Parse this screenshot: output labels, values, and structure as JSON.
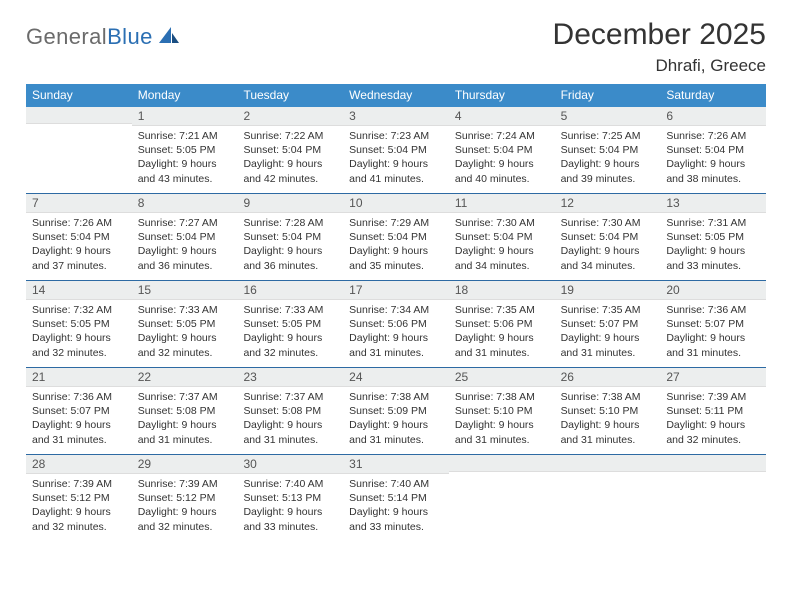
{
  "brand": {
    "general": "General",
    "blue": "Blue"
  },
  "title": "December 2025",
  "location": "Dhrafi, Greece",
  "colors": {
    "headerBar": "#3b8bc9",
    "weekDivider": "#2d6aa3",
    "dayNumBg": "#eceeee",
    "text": "#333333",
    "logoBlue": "#2b6fb3",
    "logoGray": "#6b6b6b"
  },
  "weekdays": [
    "Sunday",
    "Monday",
    "Tuesday",
    "Wednesday",
    "Thursday",
    "Friday",
    "Saturday"
  ],
  "weeks": [
    [
      {
        "n": "",
        "l1": "",
        "l2": "",
        "l3": "",
        "l4": ""
      },
      {
        "n": "1",
        "l1": "Sunrise: 7:21 AM",
        "l2": "Sunset: 5:05 PM",
        "l3": "Daylight: 9 hours",
        "l4": "and 43 minutes."
      },
      {
        "n": "2",
        "l1": "Sunrise: 7:22 AM",
        "l2": "Sunset: 5:04 PM",
        "l3": "Daylight: 9 hours",
        "l4": "and 42 minutes."
      },
      {
        "n": "3",
        "l1": "Sunrise: 7:23 AM",
        "l2": "Sunset: 5:04 PM",
        "l3": "Daylight: 9 hours",
        "l4": "and 41 minutes."
      },
      {
        "n": "4",
        "l1": "Sunrise: 7:24 AM",
        "l2": "Sunset: 5:04 PM",
        "l3": "Daylight: 9 hours",
        "l4": "and 40 minutes."
      },
      {
        "n": "5",
        "l1": "Sunrise: 7:25 AM",
        "l2": "Sunset: 5:04 PM",
        "l3": "Daylight: 9 hours",
        "l4": "and 39 minutes."
      },
      {
        "n": "6",
        "l1": "Sunrise: 7:26 AM",
        "l2": "Sunset: 5:04 PM",
        "l3": "Daylight: 9 hours",
        "l4": "and 38 minutes."
      }
    ],
    [
      {
        "n": "7",
        "l1": "Sunrise: 7:26 AM",
        "l2": "Sunset: 5:04 PM",
        "l3": "Daylight: 9 hours",
        "l4": "and 37 minutes."
      },
      {
        "n": "8",
        "l1": "Sunrise: 7:27 AM",
        "l2": "Sunset: 5:04 PM",
        "l3": "Daylight: 9 hours",
        "l4": "and 36 minutes."
      },
      {
        "n": "9",
        "l1": "Sunrise: 7:28 AM",
        "l2": "Sunset: 5:04 PM",
        "l3": "Daylight: 9 hours",
        "l4": "and 36 minutes."
      },
      {
        "n": "10",
        "l1": "Sunrise: 7:29 AM",
        "l2": "Sunset: 5:04 PM",
        "l3": "Daylight: 9 hours",
        "l4": "and 35 minutes."
      },
      {
        "n": "11",
        "l1": "Sunrise: 7:30 AM",
        "l2": "Sunset: 5:04 PM",
        "l3": "Daylight: 9 hours",
        "l4": "and 34 minutes."
      },
      {
        "n": "12",
        "l1": "Sunrise: 7:30 AM",
        "l2": "Sunset: 5:04 PM",
        "l3": "Daylight: 9 hours",
        "l4": "and 34 minutes."
      },
      {
        "n": "13",
        "l1": "Sunrise: 7:31 AM",
        "l2": "Sunset: 5:05 PM",
        "l3": "Daylight: 9 hours",
        "l4": "and 33 minutes."
      }
    ],
    [
      {
        "n": "14",
        "l1": "Sunrise: 7:32 AM",
        "l2": "Sunset: 5:05 PM",
        "l3": "Daylight: 9 hours",
        "l4": "and 32 minutes."
      },
      {
        "n": "15",
        "l1": "Sunrise: 7:33 AM",
        "l2": "Sunset: 5:05 PM",
        "l3": "Daylight: 9 hours",
        "l4": "and 32 minutes."
      },
      {
        "n": "16",
        "l1": "Sunrise: 7:33 AM",
        "l2": "Sunset: 5:05 PM",
        "l3": "Daylight: 9 hours",
        "l4": "and 32 minutes."
      },
      {
        "n": "17",
        "l1": "Sunrise: 7:34 AM",
        "l2": "Sunset: 5:06 PM",
        "l3": "Daylight: 9 hours",
        "l4": "and 31 minutes."
      },
      {
        "n": "18",
        "l1": "Sunrise: 7:35 AM",
        "l2": "Sunset: 5:06 PM",
        "l3": "Daylight: 9 hours",
        "l4": "and 31 minutes."
      },
      {
        "n": "19",
        "l1": "Sunrise: 7:35 AM",
        "l2": "Sunset: 5:07 PM",
        "l3": "Daylight: 9 hours",
        "l4": "and 31 minutes."
      },
      {
        "n": "20",
        "l1": "Sunrise: 7:36 AM",
        "l2": "Sunset: 5:07 PM",
        "l3": "Daylight: 9 hours",
        "l4": "and 31 minutes."
      }
    ],
    [
      {
        "n": "21",
        "l1": "Sunrise: 7:36 AM",
        "l2": "Sunset: 5:07 PM",
        "l3": "Daylight: 9 hours",
        "l4": "and 31 minutes."
      },
      {
        "n": "22",
        "l1": "Sunrise: 7:37 AM",
        "l2": "Sunset: 5:08 PM",
        "l3": "Daylight: 9 hours",
        "l4": "and 31 minutes."
      },
      {
        "n": "23",
        "l1": "Sunrise: 7:37 AM",
        "l2": "Sunset: 5:08 PM",
        "l3": "Daylight: 9 hours",
        "l4": "and 31 minutes."
      },
      {
        "n": "24",
        "l1": "Sunrise: 7:38 AM",
        "l2": "Sunset: 5:09 PM",
        "l3": "Daylight: 9 hours",
        "l4": "and 31 minutes."
      },
      {
        "n": "25",
        "l1": "Sunrise: 7:38 AM",
        "l2": "Sunset: 5:10 PM",
        "l3": "Daylight: 9 hours",
        "l4": "and 31 minutes."
      },
      {
        "n": "26",
        "l1": "Sunrise: 7:38 AM",
        "l2": "Sunset: 5:10 PM",
        "l3": "Daylight: 9 hours",
        "l4": "and 31 minutes."
      },
      {
        "n": "27",
        "l1": "Sunrise: 7:39 AM",
        "l2": "Sunset: 5:11 PM",
        "l3": "Daylight: 9 hours",
        "l4": "and 32 minutes."
      }
    ],
    [
      {
        "n": "28",
        "l1": "Sunrise: 7:39 AM",
        "l2": "Sunset: 5:12 PM",
        "l3": "Daylight: 9 hours",
        "l4": "and 32 minutes."
      },
      {
        "n": "29",
        "l1": "Sunrise: 7:39 AM",
        "l2": "Sunset: 5:12 PM",
        "l3": "Daylight: 9 hours",
        "l4": "and 32 minutes."
      },
      {
        "n": "30",
        "l1": "Sunrise: 7:40 AM",
        "l2": "Sunset: 5:13 PM",
        "l3": "Daylight: 9 hours",
        "l4": "and 33 minutes."
      },
      {
        "n": "31",
        "l1": "Sunrise: 7:40 AM",
        "l2": "Sunset: 5:14 PM",
        "l3": "Daylight: 9 hours",
        "l4": "and 33 minutes."
      },
      {
        "n": "",
        "l1": "",
        "l2": "",
        "l3": "",
        "l4": ""
      },
      {
        "n": "",
        "l1": "",
        "l2": "",
        "l3": "",
        "l4": ""
      },
      {
        "n": "",
        "l1": "",
        "l2": "",
        "l3": "",
        "l4": ""
      }
    ]
  ]
}
